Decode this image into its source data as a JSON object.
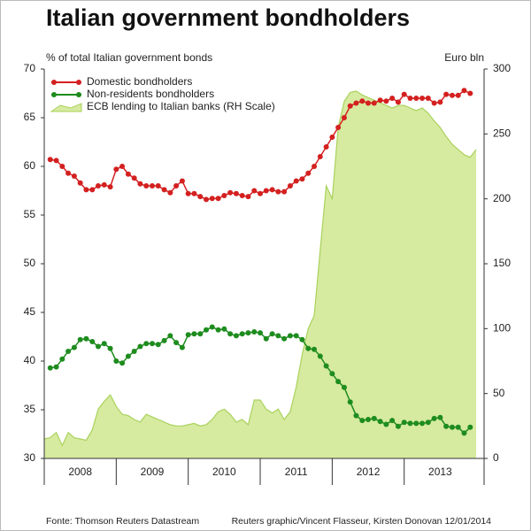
{
  "chart_data": {
    "type": "line",
    "title": "Italian government bondholders",
    "y_label": "% of total Italian government bonds",
    "y2_label": "Euro bln",
    "source": "Fonte: Thomson Reuters Datastream",
    "credit": "Reuters graphic/Vincent Flasseur, Kirsten Donovan 12/01/2014",
    "legend": "upper left",
    "grid": false,
    "xlim": [
      2008,
      2014.11
    ],
    "xticks": [
      2008,
      2009,
      2010,
      2011,
      2012,
      2013
    ],
    "ylim": [
      30,
      70
    ],
    "yticks": [
      30,
      35,
      40,
      45,
      50,
      55,
      60,
      65,
      70
    ],
    "y2lim": [
      0,
      300
    ],
    "y2ticks": [
      0,
      50,
      100,
      150,
      200,
      250,
      300
    ],
    "x": [
      2008,
      2008.083,
      2008.167,
      2008.25,
      2008.333,
      2008.417,
      2008.5,
      2008.583,
      2008.667,
      2008.75,
      2008.833,
      2008.917,
      2009,
      2009.083,
      2009.167,
      2009.25,
      2009.333,
      2009.417,
      2009.5,
      2009.583,
      2009.667,
      2009.75,
      2009.833,
      2009.917,
      2010,
      2010.083,
      2010.167,
      2010.25,
      2010.333,
      2010.417,
      2010.5,
      2010.583,
      2010.667,
      2010.75,
      2010.833,
      2010.917,
      2011,
      2011.083,
      2011.167,
      2011.25,
      2011.333,
      2011.417,
      2011.5,
      2011.583,
      2011.667,
      2011.75,
      2011.833,
      2011.917,
      2012,
      2012.083,
      2012.167,
      2012.25,
      2012.333,
      2012.417,
      2012.5,
      2012.583,
      2012.667,
      2012.75,
      2012.833,
      2012.917,
      2013,
      2013.083,
      2013.167,
      2013.25,
      2013.333,
      2013.417,
      2013.5,
      2013.583,
      2013.667,
      2013.75,
      2013.833,
      2013.917,
      2014
    ],
    "series": [
      {
        "name": "ECB lending to Italian banks (RH Scale)",
        "type": "area",
        "axis": "y2",
        "color": "#d6eaa0",
        "line_color": "#a9d25c",
        "values": [
          15,
          16,
          20,
          10,
          20,
          16,
          15,
          14,
          22,
          38,
          44,
          49,
          40,
          34,
          33,
          30,
          28,
          34,
          32,
          30,
          28,
          26,
          25,
          25,
          26,
          27,
          25,
          26,
          30,
          36,
          38,
          34,
          28,
          30,
          26,
          45,
          45,
          38,
          35,
          38,
          30,
          36,
          55,
          80,
          100,
          110,
          160,
          210,
          200,
          255,
          275,
          282,
          283,
          280,
          278,
          276,
          274,
          272,
          270,
          272,
          272,
          270,
          268,
          270,
          266,
          260,
          255,
          248,
          242,
          238,
          234,
          232,
          238
        ]
      },
      {
        "name": "Non-residents bondholders",
        "type": "line",
        "color": "#1e8c1e",
        "values": [
          null,
          39.3,
          39.4,
          40.2,
          41.0,
          41.4,
          42.2,
          42.3,
          42.0,
          41.5,
          41.8,
          41.3,
          40.0,
          39.8,
          40.5,
          41.0,
          41.5,
          41.8,
          41.8,
          41.7,
          42.1,
          42.6,
          41.9,
          41.4,
          42.7,
          42.8,
          42.8,
          43.2,
          43.5,
          43.2,
          43.3,
          42.8,
          42.6,
          42.8,
          42.9,
          43.0,
          42.9,
          42.3,
          42.8,
          42.6,
          42.3,
          42.6,
          42.6,
          42.2,
          41.3,
          41.2,
          40.5,
          39.5,
          38.7,
          37.9,
          37.3,
          35.8,
          34.4,
          33.9,
          34.0,
          34.1,
          33.8,
          33.5,
          33.9,
          33.3,
          33.7,
          33.6,
          33.6,
          33.6,
          33.7,
          34.1,
          34.2,
          33.3,
          33.2,
          33.2,
          32.6,
          33.2,
          null
        ]
      },
      {
        "name": "Domestic bondholders",
        "type": "line",
        "color": "#d42020",
        "values": [
          null,
          60.7,
          60.6,
          60.0,
          59.3,
          59.0,
          58.3,
          57.6,
          57.6,
          58.0,
          58.1,
          57.9,
          59.7,
          60.0,
          59.2,
          58.8,
          58.2,
          58.0,
          58.0,
          58.0,
          57.6,
          57.3,
          58.0,
          58.5,
          57.2,
          57.2,
          56.9,
          56.6,
          56.7,
          56.7,
          57.0,
          57.3,
          57.2,
          57.0,
          56.9,
          57.5,
          57.2,
          57.5,
          57.6,
          57.4,
          57.4,
          58.0,
          58.5,
          58.7,
          59.3,
          60.0,
          61.0,
          62.0,
          63.0,
          64.0,
          65.0,
          66.2,
          66.5,
          66.7,
          66.5,
          66.5,
          66.8,
          66.7,
          67.0,
          66.6,
          67.4,
          67.0,
          67.0,
          67.0,
          67.0,
          66.5,
          66.6,
          67.4,
          67.3,
          67.3,
          67.8,
          67.5,
          null
        ]
      }
    ]
  }
}
